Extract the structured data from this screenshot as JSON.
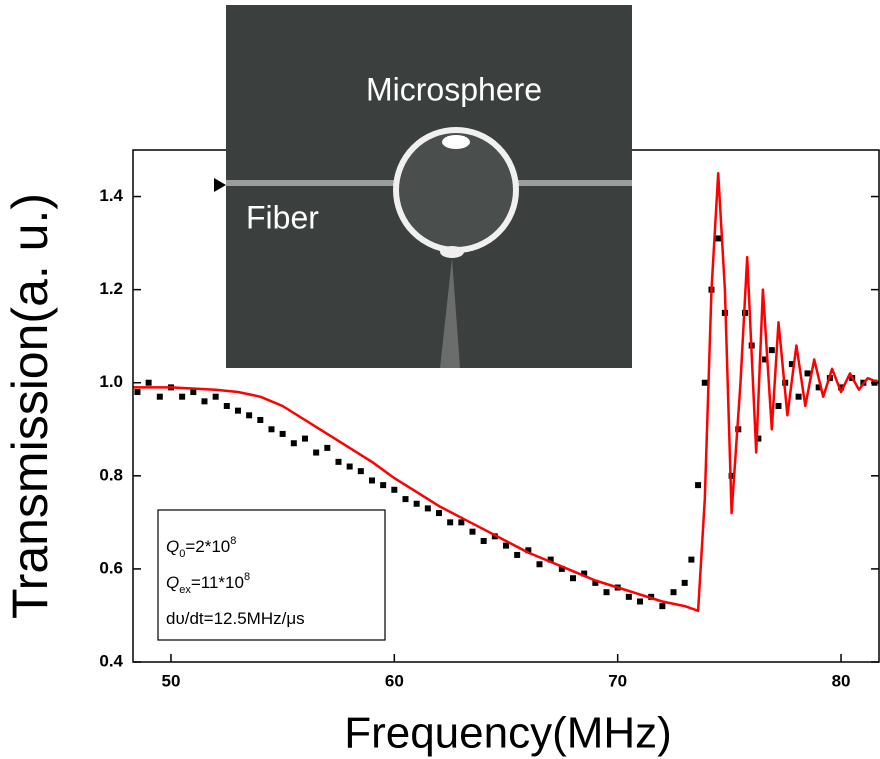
{
  "chart_data": {
    "type": "line",
    "x_label": "Frequency(MHz)",
    "y_label": "Transmission(a. u.)",
    "xlim": [
      48.3,
      81.7
    ],
    "ylim": [
      0.4,
      1.5
    ],
    "xticks": [
      50,
      60,
      70,
      80
    ],
    "yticks": [
      0.4,
      0.6,
      0.8,
      {
        "value": 1,
        "label": "1.0"
      },
      1.2,
      1.4
    ],
    "series": [
      {
        "color": "#000000",
        "style": "points",
        "x": [
          48.5,
          49,
          49.5,
          50,
          50.5,
          51,
          51.5,
          52,
          52.5,
          53,
          53.5,
          54,
          54.5,
          55,
          55.5,
          56,
          56.5,
          57,
          57.5,
          58,
          58.5,
          59,
          59.5,
          60,
          60.5,
          61,
          61.5,
          62,
          62.5,
          63,
          63.5,
          64,
          64.5,
          65,
          65.5,
          66,
          66.5,
          67,
          67.5,
          68,
          68.5,
          69,
          69.5,
          70,
          70.5,
          71,
          71.5,
          72,
          72.5,
          73,
          73.3,
          73.6,
          73.9,
          74.2,
          74.5,
          74.8,
          75.1,
          75.4,
          75.7,
          76,
          76.3,
          76.6,
          76.9,
          77.2,
          77.5,
          77.8,
          78.1,
          78.5,
          79,
          79.5,
          80,
          80.5,
          81,
          81.5
        ],
        "values": [
          0.98,
          1.0,
          0.97,
          0.99,
          0.97,
          0.98,
          0.96,
          0.97,
          0.95,
          0.94,
          0.93,
          0.92,
          0.9,
          0.89,
          0.87,
          0.88,
          0.85,
          0.86,
          0.83,
          0.82,
          0.81,
          0.79,
          0.78,
          0.77,
          0.75,
          0.74,
          0.73,
          0.72,
          0.7,
          0.7,
          0.68,
          0.66,
          0.67,
          0.65,
          0.63,
          0.64,
          0.61,
          0.62,
          0.6,
          0.58,
          0.59,
          0.57,
          0.55,
          0.56,
          0.54,
          0.53,
          0.54,
          0.52,
          0.55,
          0.57,
          0.62,
          0.78,
          1.0,
          1.2,
          1.31,
          1.15,
          0.8,
          0.9,
          1.15,
          1.08,
          0.88,
          1.05,
          1.07,
          0.95,
          1.0,
          1.04,
          0.97,
          1.02,
          0.99,
          1.01,
          0.99,
          1.01,
          1.0,
          1.0
        ]
      },
      {
        "color": "#ff0000",
        "style": "line",
        "x": [
          48.3,
          50,
          52,
          53,
          54,
          55,
          56,
          57,
          58,
          59,
          60,
          61,
          62,
          63,
          64,
          65,
          66,
          67,
          68,
          69,
          70,
          71,
          72,
          73,
          73.6,
          73.9,
          74.2,
          74.5,
          74.8,
          75.1,
          75.5,
          75.8,
          76.2,
          76.5,
          76.9,
          77.2,
          77.6,
          78,
          78.4,
          78.8,
          79.2,
          79.6,
          80,
          80.4,
          80.8,
          81.2,
          81.7
        ],
        "values": [
          0.99,
          0.99,
          0.985,
          0.98,
          0.97,
          0.95,
          0.92,
          0.89,
          0.86,
          0.83,
          0.795,
          0.765,
          0.735,
          0.71,
          0.685,
          0.66,
          0.635,
          0.615,
          0.595,
          0.575,
          0.56,
          0.545,
          0.53,
          0.52,
          0.51,
          0.75,
          1.2,
          1.45,
          1.2,
          0.72,
          1.0,
          1.27,
          0.85,
          1.2,
          0.9,
          1.13,
          0.93,
          1.08,
          0.95,
          1.05,
          0.97,
          1.03,
          0.98,
          1.02,
          0.985,
          1.01,
          1.0
        ]
      }
    ],
    "annotations": [
      {
        "symbol": "Q",
        "subscript": "0",
        "text": "=2*10",
        "superscript": "8"
      },
      {
        "symbol": "Q",
        "subscript": "ex",
        "text": "=11*10",
        "superscript": "8"
      },
      {
        "text": "dυ/dt=12.5MHz/μs"
      }
    ],
    "inset_labels": [
      "Microsphere",
      "Fiber"
    ]
  }
}
